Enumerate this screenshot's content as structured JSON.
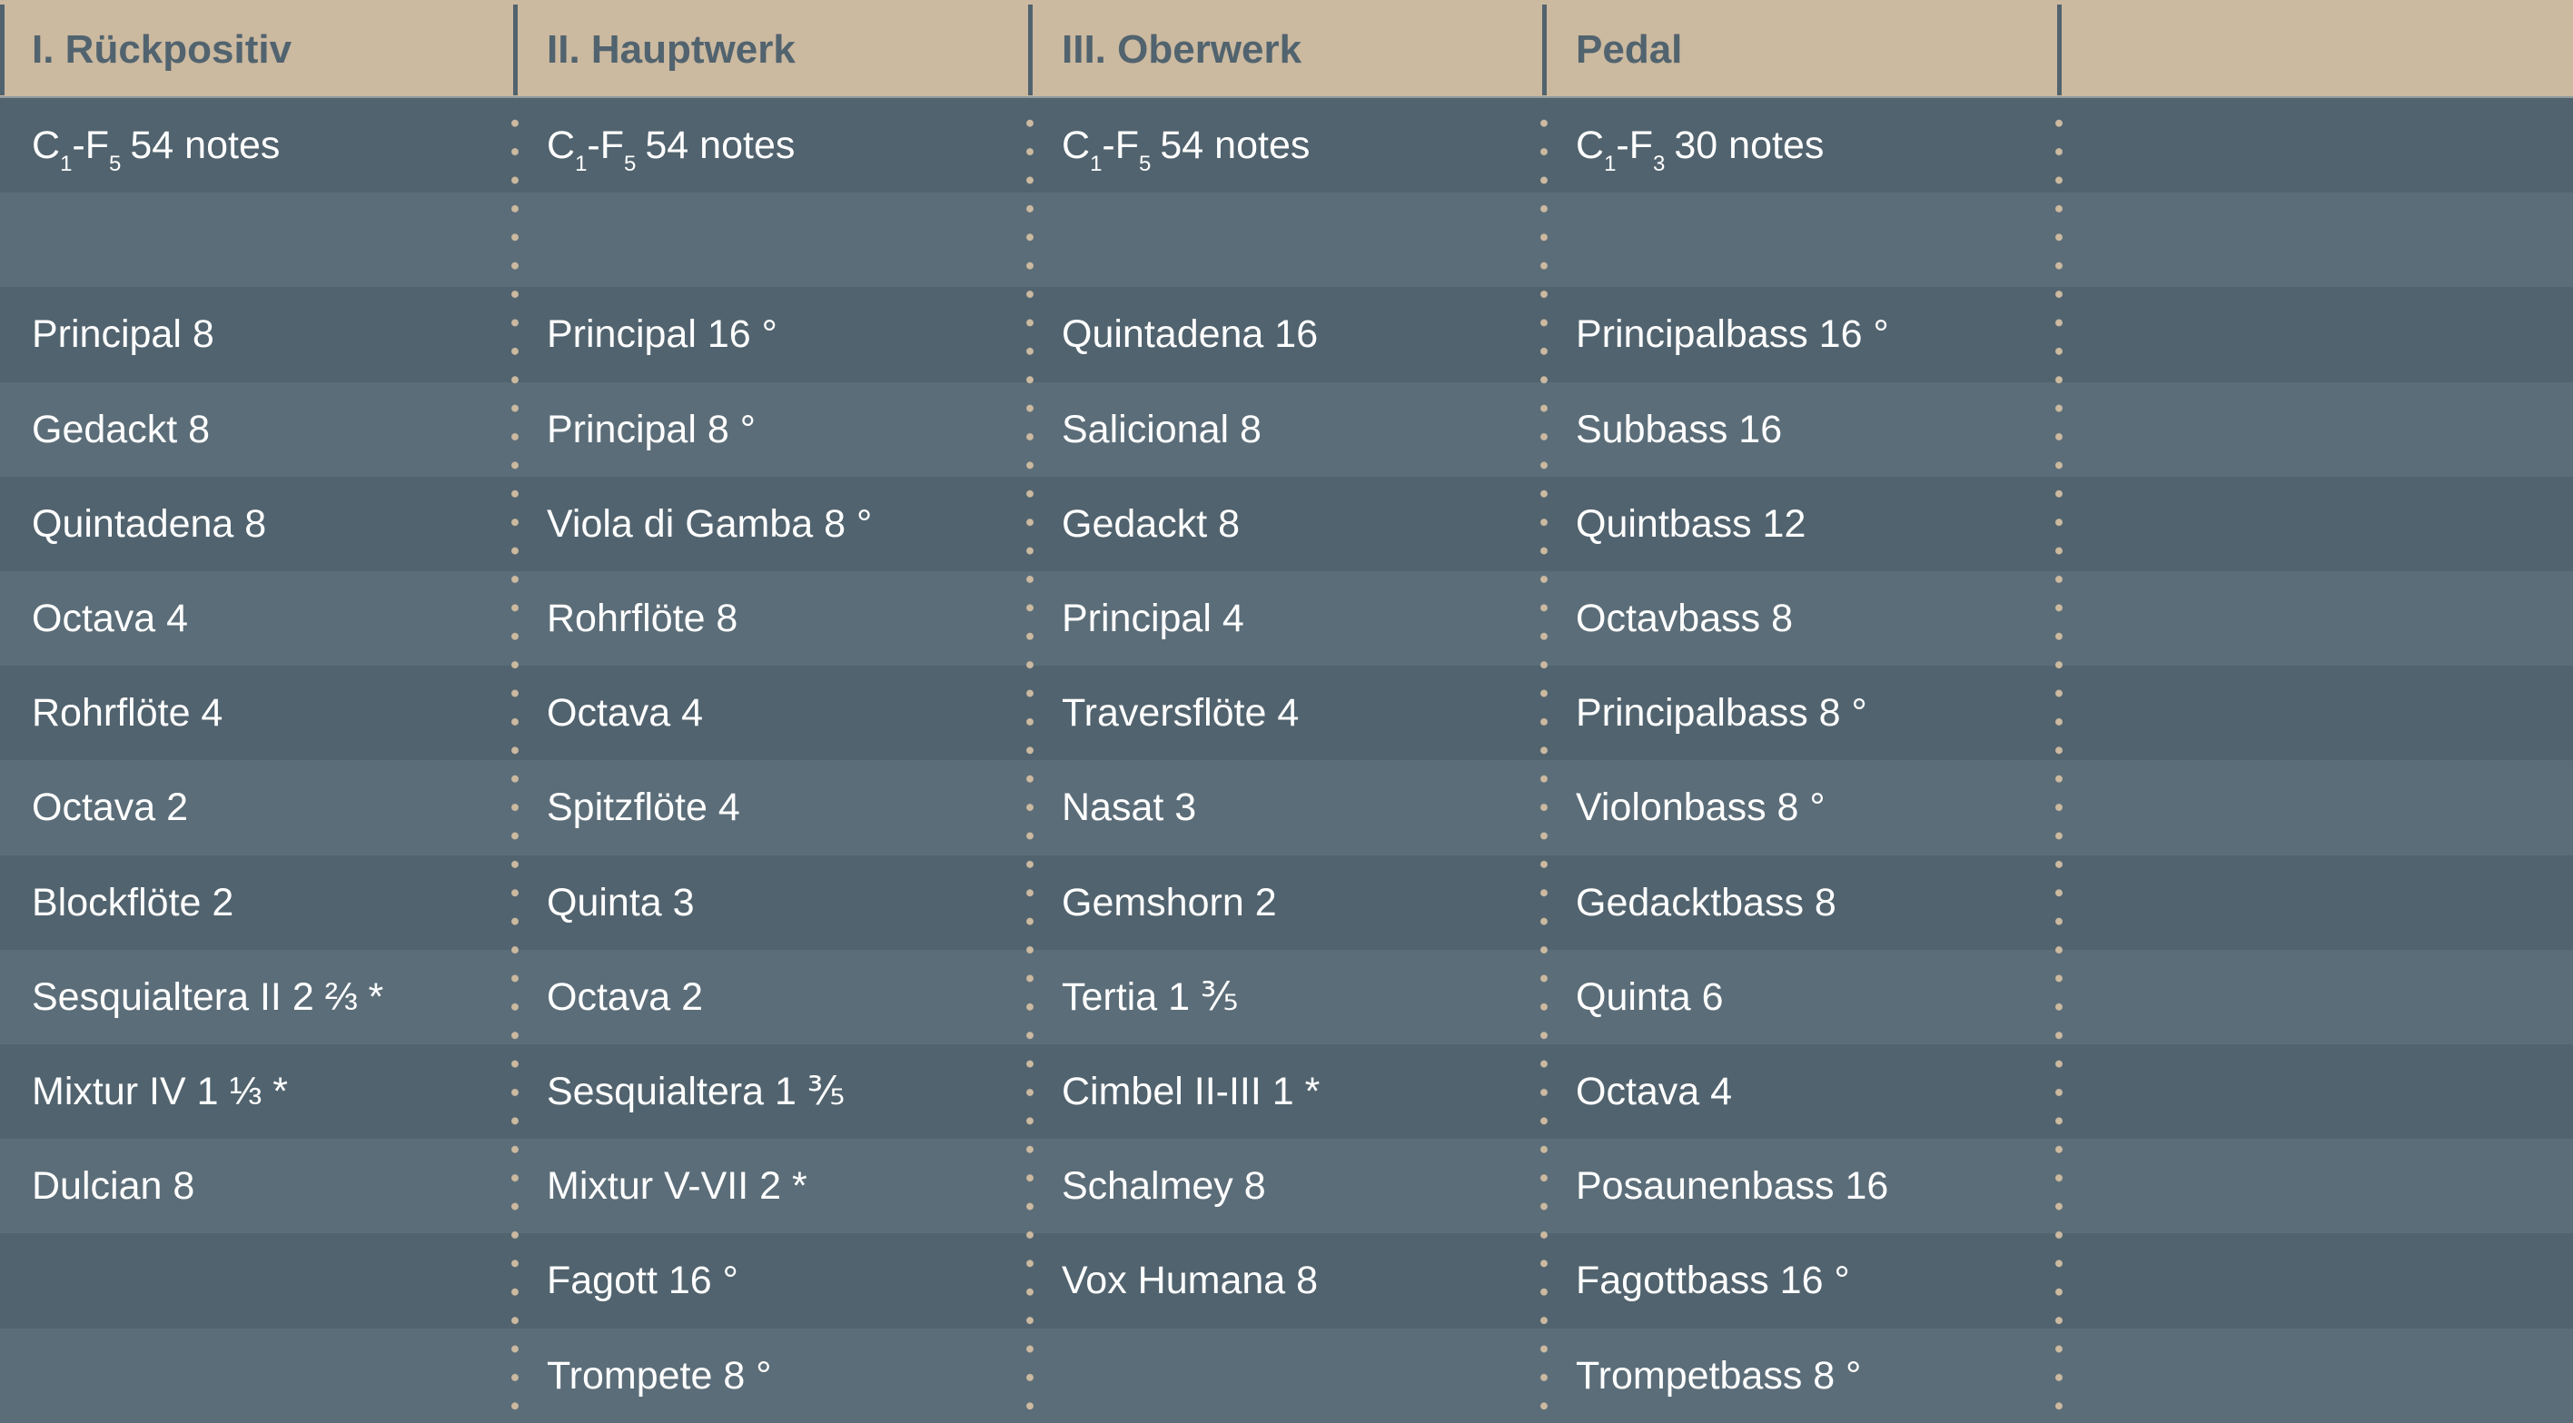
{
  "columns": [
    {
      "title": "I. Rückpositiv",
      "range": {
        "from": "C",
        "from_sub": "1",
        "to": "F",
        "to_sub": "5",
        "notes": "54 notes"
      },
      "stops": [
        "Principal 8",
        "Gedackt 8",
        "Quintadena 8",
        "Octava 4",
        "Rohrflöte 4",
        "Octava 2",
        "Blockflöte 2",
        "Sesquialtera II 2 ⅔ *",
        "Mixtur IV 1 ⅓ *",
        "Dulcian 8"
      ]
    },
    {
      "title": "II. Hauptwerk",
      "range": {
        "from": "C",
        "from_sub": "1",
        "to": "F",
        "to_sub": "5",
        "notes": "54 notes"
      },
      "stops": [
        "Principal 16 °",
        "Principal 8 °",
        "Viola di Gamba 8 °",
        "Rohrflöte 8",
        "Octava 4",
        "Spitzflöte 4",
        "Quinta 3",
        "Octava 2",
        "Sesquialtera 1 ⅗",
        "Mixtur V-VII 2 *",
        "Fagott 16 °",
        "Trompete 8 °"
      ]
    },
    {
      "title": "III. Oberwerk",
      "range": {
        "from": "C",
        "from_sub": "1",
        "to": "F",
        "to_sub": "5",
        "notes": "54 notes"
      },
      "stops": [
        "Quintadena 16",
        "Salicional 8",
        "Gedackt 8",
        "Principal 4",
        "Traversflöte 4",
        "Nasat 3",
        "Gemshorn 2",
        "Tertia 1 ⅗",
        "Cimbel II-III 1 *",
        "Schalmey 8",
        "Vox Humana 8"
      ]
    },
    {
      "title": "Pedal",
      "range": {
        "from": "C",
        "from_sub": "1",
        "to": "F",
        "to_sub": "3",
        "notes": "30 notes"
      },
      "stops": [
        "Principalbass 16 °",
        "Subbass 16",
        "Quintbass 12",
        "Octavbass 8",
        "Principalbass 8 °",
        "Violonbass 8 °",
        "Gedacktbass 8",
        "Quinta 6",
        "Octava 4",
        "Posaunenbass 16",
        "Fagottbass 16 °",
        "Trompetbass 8 °"
      ]
    }
  ],
  "colors": {
    "header_bg": "#cbb9a0",
    "header_text": "#51636e",
    "row_dark": "#51636e",
    "row_light": "#5b6d78",
    "dots": "#cbb9a0",
    "text": "#ffffff"
  }
}
